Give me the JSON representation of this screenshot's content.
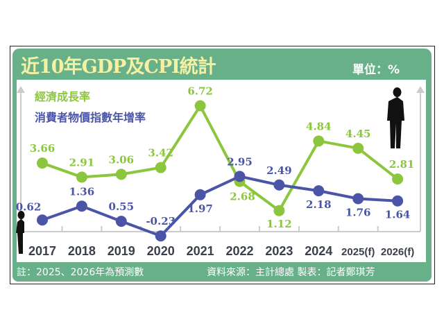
{
  "title": "近10年GDP及CPI統計",
  "unit": "單位：%",
  "footer": {
    "note": "註：2025、2026年為預測數",
    "source": "資料來源：主計總處 製表：記者鄭琪芳"
  },
  "chart_data": {
    "type": "line",
    "title": "近10年GDP及CPI統計",
    "categories": [
      "2017",
      "2018",
      "2019",
      "2020",
      "2021",
      "2022",
      "2023",
      "2024",
      "2025(f)",
      "2026(f)"
    ],
    "series": [
      {
        "name": "經濟成長率",
        "color": "#8cc63f",
        "values": [
          3.66,
          2.91,
          3.06,
          3.42,
          6.72,
          2.68,
          1.12,
          4.84,
          4.45,
          2.81
        ]
      },
      {
        "name": "消費者物價指數年增率",
        "color": "#4a55a8",
        "values": [
          0.62,
          1.36,
          0.55,
          -0.23,
          1.97,
          2.95,
          2.49,
          2.18,
          1.76,
          1.64
        ]
      }
    ],
    "legend": "top-left",
    "grid": "vertical"
  }
}
